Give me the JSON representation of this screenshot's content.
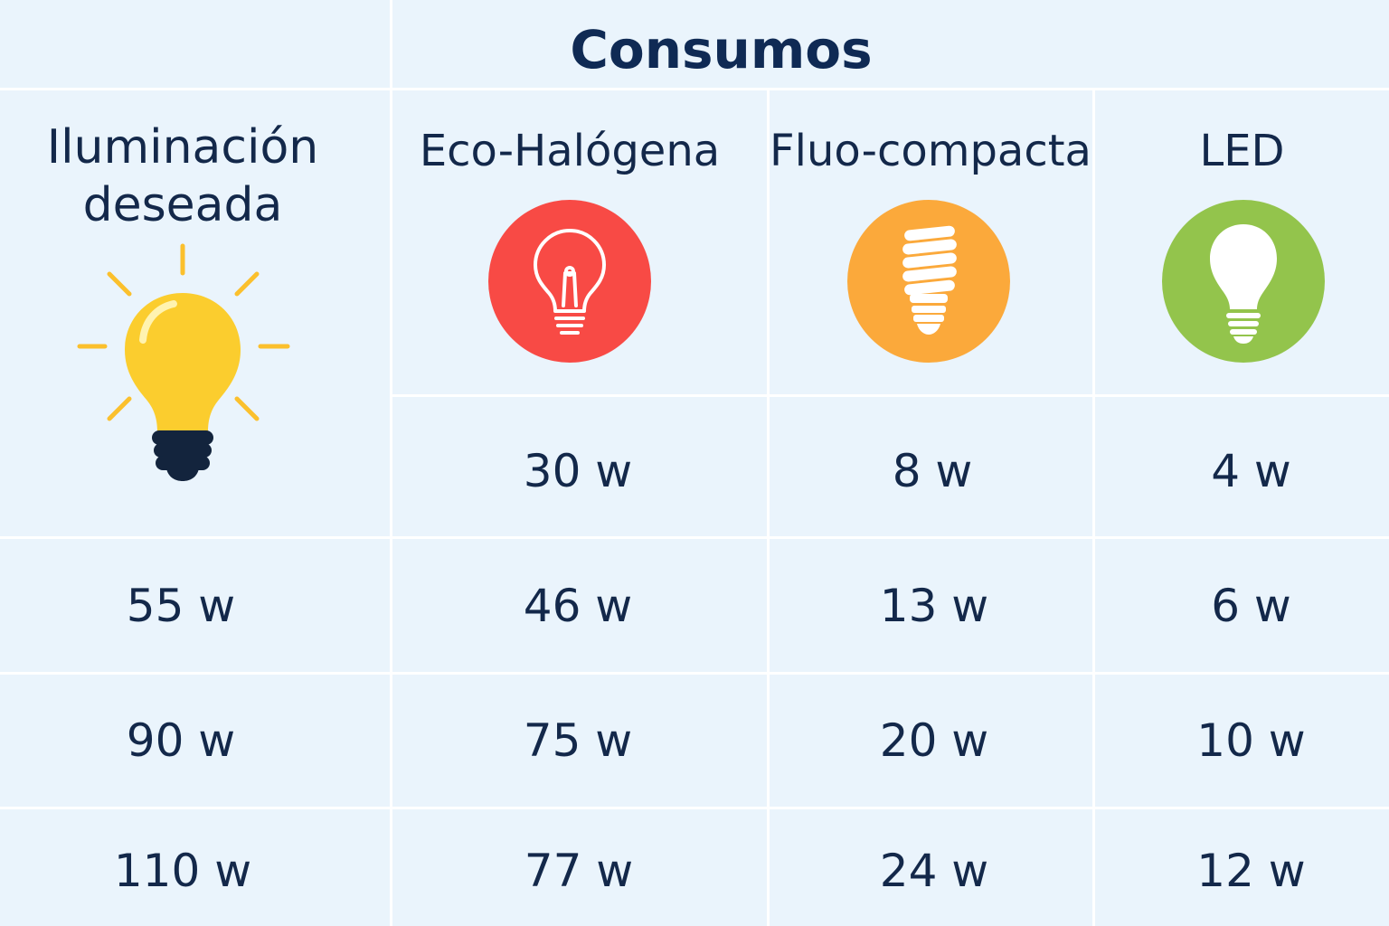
{
  "title": "Consumos",
  "header": {
    "desired_line1": "Iluminación",
    "desired_line2": "deseada",
    "columns": [
      "Eco-Halógena",
      "Fluo-compacta",
      "LED"
    ]
  },
  "icons": {
    "desired": "light-bulb-icon",
    "columns": [
      "halogen-bulb-icon",
      "cfl-bulb-icon",
      "led-bulb-icon"
    ]
  },
  "colors": {
    "background": "#eaf4fc",
    "text": "#13284a",
    "halogen": "#f84a45",
    "cfl": "#fba93b",
    "led": "#93c44c",
    "bulb_yellow": "#fbcd2e",
    "bulb_base": "#13243d"
  },
  "rows": [
    {
      "desired": "",
      "values": [
        "30 w",
        "8 w",
        "4 w"
      ]
    },
    {
      "desired": "55 w",
      "values": [
        "46 w",
        "13 w",
        "6 w"
      ]
    },
    {
      "desired": "90 w",
      "values": [
        "75 w",
        "20 w",
        "10 w"
      ]
    },
    {
      "desired": "110 w",
      "values": [
        "77 w",
        "24 w",
        "12 w"
      ]
    }
  ]
}
